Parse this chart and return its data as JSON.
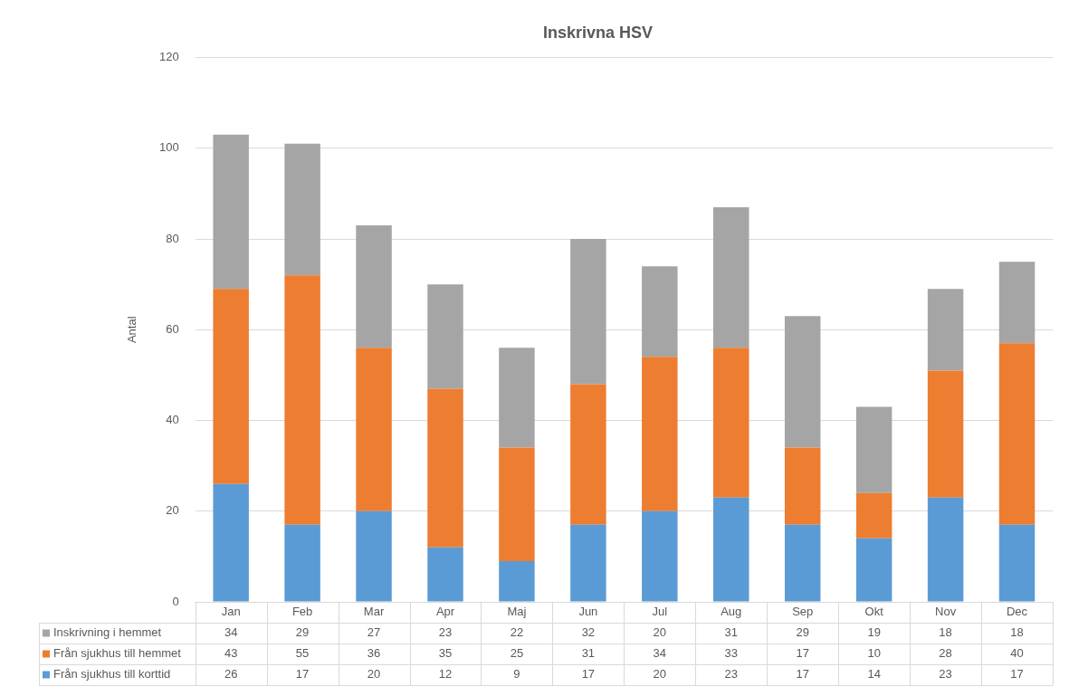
{
  "chart_data": {
    "type": "bar",
    "title": "Inskrivna HSV",
    "ylabel": "Antal",
    "stacked": true,
    "grid": "y",
    "legend": "bottom",
    "data_labels": true,
    "categories": [
      "Jan",
      "Feb",
      "Mar",
      "Apr",
      "Maj",
      "Jun",
      "Jul",
      "Aug",
      "Sep",
      "Okt",
      "Nov",
      "Dec"
    ],
    "ylim": [
      0,
      120
    ],
    "yticks": [
      0,
      20,
      40,
      60,
      80,
      100,
      120
    ],
    "series": [
      {
        "name": "Från sjukhus till korttid",
        "color": "#5b9bd5",
        "values": [
          26,
          17,
          20,
          12,
          9,
          17,
          20,
          23,
          17,
          14,
          23,
          17
        ]
      },
      {
        "name": "Från sjukhus till hemmet",
        "color": "#ed7d31",
        "values": [
          43,
          55,
          36,
          35,
          25,
          31,
          34,
          33,
          17,
          10,
          28,
          40
        ]
      },
      {
        "name": "Inskrivning i hemmet",
        "color": "#a5a5a5",
        "values": [
          34,
          29,
          27,
          23,
          22,
          32,
          20,
          31,
          29,
          19,
          18,
          18
        ]
      }
    ]
  }
}
